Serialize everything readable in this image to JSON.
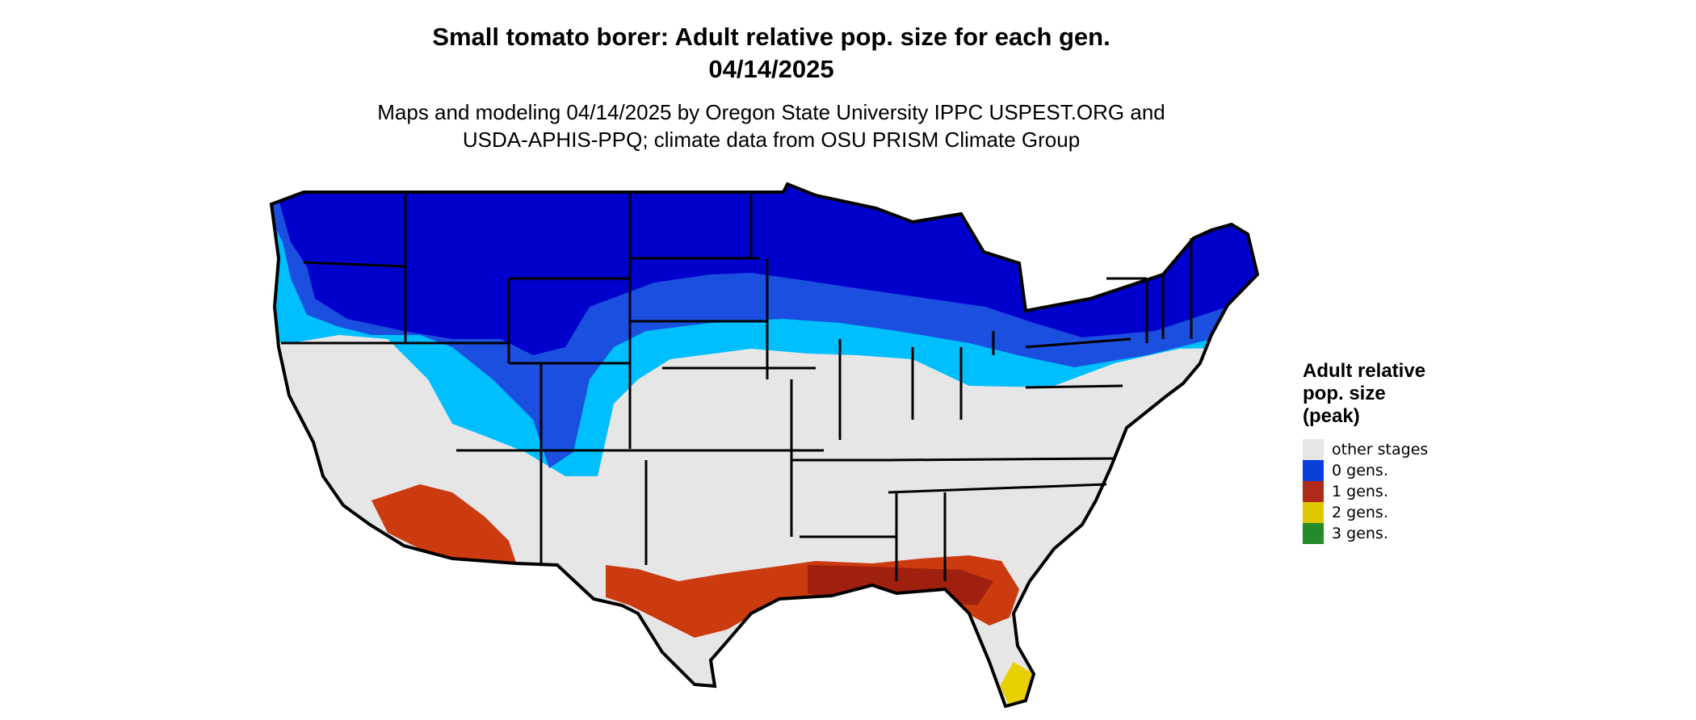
{
  "title_line1": "Small tomato borer: Adult relative pop. size for each gen.",
  "title_line2": "04/14/2025",
  "subtitle_line1": "Maps and modeling 04/14/2025 by Oregon State University IPPC USPEST.ORG and",
  "subtitle_line2": "USDA-APHIS-PPQ; climate data from OSU PRISM Climate Group",
  "legend": {
    "title_lines": [
      "Adult relative",
      "pop. size",
      "(peak)"
    ],
    "items": [
      {
        "label": "other stages",
        "color": "#e6e6e6"
      },
      {
        "label": "0 gens.",
        "color": "#0a3fd8"
      },
      {
        "label": "1 gens.",
        "color": "#b02a1a"
      },
      {
        "label": "2 gens.",
        "color": "#e0c800"
      },
      {
        "label": "3 gens.",
        "color": "#238b2a"
      }
    ]
  },
  "colors": {
    "dark_blue": "#0000cc",
    "mid_blue": "#1a4fe0",
    "light_blue": "#00bfff",
    "grey": "#e6e6e6",
    "red": "#cc3a10",
    "dark_red": "#a02010",
    "yellow": "#e6d000",
    "outline": "#000000"
  }
}
